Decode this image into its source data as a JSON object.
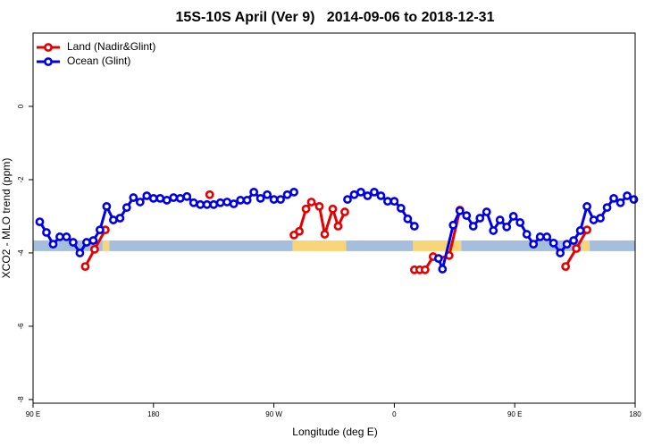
{
  "chart_data": {
    "type": "line",
    "title": "15S-10S April (Ver 9)   2014-09-06 to 2018-12-31",
    "xlabel": "Longitude (deg E)",
    "ylabel": "XCO2 - MLO trend (ppm)",
    "xlim": [
      90,
      540
    ],
    "ylim": [
      -8.1,
      2
    ],
    "xticks": [
      {
        "value": 90,
        "label": "90 E"
      },
      180,
      {
        "value": 270,
        "label": "90 W"
      },
      {
        "value": 360,
        "label": "0"
      },
      {
        "value": 450,
        "label": "90 E"
      },
      {
        "value": 540,
        "label": "180"
      }
    ],
    "yticks": [
      -8,
      -6,
      -4,
      -2,
      0
    ],
    "legend": "top-left",
    "band_y": [
      -3.95,
      -3.66
    ],
    "band": [
      {
        "start": 90,
        "end": 142,
        "color": "#a5bedd"
      },
      {
        "start": 142,
        "end": 147,
        "color": "#f9d57a"
      },
      {
        "start": 147,
        "end": 284,
        "color": "#a5bedd"
      },
      {
        "start": 284,
        "end": 324,
        "color": "#f9d57a"
      },
      {
        "start": 324,
        "end": 374,
        "color": "#a5bedd"
      },
      {
        "start": 374,
        "end": 410,
        "color": "#f9d57a"
      },
      {
        "start": 410,
        "end": 500,
        "color": "#a5bedd"
      },
      {
        "start": 500,
        "end": 506,
        "color": "#f9d57a"
      },
      {
        "start": 506,
        "end": 540,
        "color": "#a5bedd"
      }
    ],
    "series": [
      {
        "name": "Land (Nadir&Glint)",
        "color": "#e60000",
        "x": [
          129,
          136,
          144,
          180,
          222,
          250,
          285,
          289,
          294,
          298,
          304,
          308,
          314,
          318,
          323,
          350,
          375,
          379,
          383,
          389,
          393,
          401,
          409,
          450,
          488,
          496,
          504
        ],
        "values": [
          -4.37,
          -3.9,
          -3.37,
          null,
          -2.41,
          null,
          -3.51,
          -3.41,
          -2.8,
          -2.61,
          -2.73,
          -3.49,
          -2.8,
          -3.27,
          -2.88,
          null,
          -4.46,
          -4.46,
          -4.46,
          -4.1,
          -4.15,
          -4.07,
          -2.83,
          null,
          -4.37,
          -3.88,
          -3.37
        ]
      },
      {
        "name": "Ocean (Glint)",
        "color": "#0000e6",
        "x": [
          95,
          100,
          105,
          110,
          115,
          120,
          125,
          130,
          135,
          140,
          145,
          150,
          155,
          160,
          165,
          170,
          175,
          180,
          185,
          190,
          195,
          200,
          205,
          210,
          215,
          220,
          225,
          230,
          235,
          240,
          245,
          250,
          255,
          260,
          265,
          270,
          275,
          280,
          285,
          305,
          325,
          330,
          335,
          340,
          345,
          350,
          355,
          360,
          365,
          370,
          375,
          380,
          393,
          396,
          404,
          409,
          414,
          419,
          424,
          429,
          434,
          439,
          444,
          449,
          454,
          459,
          464,
          469,
          474,
          479,
          484,
          489,
          494,
          499,
          504,
          509,
          514,
          519,
          524,
          529,
          534,
          539
        ],
        "values": [
          -3.15,
          -3.44,
          -3.76,
          -3.56,
          -3.56,
          -3.71,
          -4.0,
          -3.71,
          -3.66,
          -3.37,
          -2.73,
          -3.1,
          -3.05,
          -2.76,
          -2.49,
          -2.61,
          -2.44,
          -2.51,
          -2.51,
          -2.56,
          -2.49,
          -2.51,
          -2.46,
          -2.63,
          -2.68,
          -2.68,
          -2.68,
          -2.63,
          -2.61,
          -2.66,
          -2.56,
          -2.56,
          -2.34,
          -2.51,
          -2.41,
          -2.54,
          -2.54,
          -2.41,
          -2.34,
          null,
          -2.54,
          -2.41,
          -2.34,
          -2.44,
          -2.34,
          -2.44,
          -2.59,
          -2.59,
          -2.78,
          -3.07,
          -3.27,
          null,
          -4.15,
          -4.44,
          -3.24,
          -2.85,
          -2.98,
          -3.27,
          -3.05,
          -2.88,
          -3.39,
          -3.1,
          -3.29,
          -3.0,
          -3.17,
          -3.49,
          -3.76,
          -3.56,
          -3.56,
          -3.73,
          -4.0,
          -3.76,
          -3.66,
          -3.39,
          -2.73,
          -3.1,
          -3.05,
          -2.76,
          -2.51,
          -2.63,
          -2.44,
          -2.54
        ]
      }
    ]
  }
}
